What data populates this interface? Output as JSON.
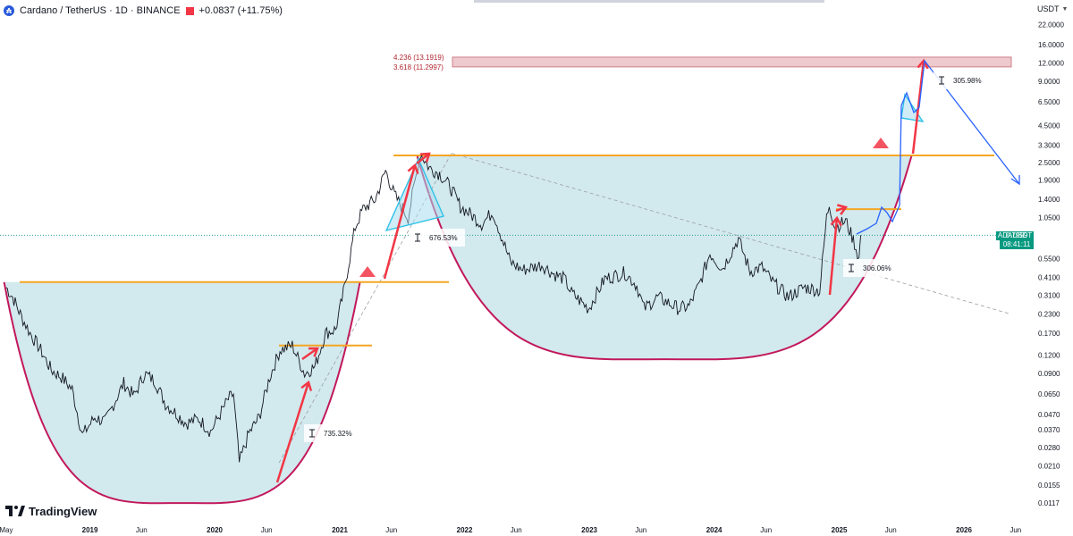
{
  "header": {
    "symbol": "Cardano / TetherUS · 1D · BINANCE",
    "change": "+0.0837 (+11.75%)",
    "logo_letter": "₳"
  },
  "currency_selector": {
    "label": "USDT"
  },
  "brand": {
    "name": "TradingView"
  },
  "current_price": {
    "symbol": "ADAUSDT",
    "price": "0.7959",
    "countdown": "08:41:11",
    "color": "#089981"
  },
  "colors": {
    "cup_fill": "#cde7ec",
    "cup_stroke": "#c2185b",
    "resistance": "#f5a623",
    "arrow_red": "#f23645",
    "projection_blue": "#2962ff",
    "triangle_fill": "#a9dcef",
    "triangle_stroke": "#2ec2e6",
    "target_zone": "#e8b7bc"
  },
  "chart_data": {
    "type": "line",
    "title": "Cardano / TetherUS · 1D · BINANCE",
    "log_scale": true,
    "y_ticks": [
      "22.0000",
      "16.0000",
      "12.0000",
      "9.0000",
      "6.5000",
      "4.5000",
      "3.3000",
      "2.5000",
      "1.9000",
      "1.4000",
      "1.0500",
      "0.7959",
      "0.5500",
      "0.4100",
      "0.3100",
      "0.2300",
      "0.1700",
      "0.1200",
      "0.0900",
      "0.0650",
      "0.0470",
      "0.0370",
      "0.0280",
      "0.0210",
      "0.0155",
      "0.0117"
    ],
    "x_ticks": [
      "May",
      "2019",
      "Jun",
      "2020",
      "Jun",
      "2021",
      "Jun",
      "2022",
      "Jun",
      "2023",
      "Jun",
      "2024",
      "Jun",
      "2025",
      "Jun",
      "2026",
      "Jun"
    ],
    "series": [
      {
        "values": [
          [
            "2018-05-01",
            0.35
          ],
          [
            "2018-05-20",
            0.3
          ],
          [
            "2018-06-15",
            0.22
          ],
          [
            "2018-07-10",
            0.17
          ],
          [
            "2018-08-10",
            0.13
          ],
          [
            "2018-09-10",
            0.095
          ],
          [
            "2018-10-10",
            0.085
          ],
          [
            "2018-11-10",
            0.07
          ],
          [
            "2018-12-10",
            0.034
          ],
          [
            "2019-01-15",
            0.045
          ],
          [
            "2019-02-15",
            0.042
          ],
          [
            "2019-03-15",
            0.058
          ],
          [
            "2019-04-10",
            0.077
          ],
          [
            "2019-05-10",
            0.063
          ],
          [
            "2019-06-10",
            0.09
          ],
          [
            "2019-07-10",
            0.08
          ],
          [
            "2019-08-10",
            0.056
          ],
          [
            "2019-09-10",
            0.048
          ],
          [
            "2019-10-10",
            0.041
          ],
          [
            "2019-11-15",
            0.044
          ],
          [
            "2019-12-20",
            0.036
          ],
          [
            "2020-02-10",
            0.06
          ],
          [
            "2020-02-25",
            0.065
          ],
          [
            "2020-03-13",
            0.022
          ],
          [
            "2020-04-10",
            0.035
          ],
          [
            "2020-05-10",
            0.045
          ],
          [
            "2020-06-10",
            0.085
          ],
          [
            "2020-07-10",
            0.13
          ],
          [
            "2020-08-15",
            0.14
          ],
          [
            "2020-09-20",
            0.09
          ],
          [
            "2020-10-20",
            0.1
          ],
          [
            "2020-11-20",
            0.17
          ],
          [
            "2020-12-20",
            0.18
          ],
          [
            "2021-01-15",
            0.35
          ],
          [
            "2021-02-15",
            0.9
          ],
          [
            "2021-03-10",
            1.2
          ],
          [
            "2021-04-15",
            1.4
          ],
          [
            "2021-05-15",
            2.2
          ],
          [
            "2021-06-10",
            1.5
          ],
          [
            "2021-07-20",
            1.05
          ],
          [
            "2021-08-25",
            2.9
          ],
          [
            "2021-09-20",
            2.3
          ],
          [
            "2021-10-20",
            2.1
          ],
          [
            "2021-11-20",
            1.7
          ],
          [
            "2021-12-20",
            1.25
          ],
          [
            "2022-01-20",
            1.1
          ],
          [
            "2022-02-20",
            0.95
          ],
          [
            "2022-03-25",
            1.15
          ],
          [
            "2022-05-15",
            0.52
          ],
          [
            "2022-06-20",
            0.46
          ],
          [
            "2022-08-15",
            0.5
          ],
          [
            "2022-09-20",
            0.43
          ],
          [
            "2022-10-20",
            0.4
          ],
          [
            "2022-11-10",
            0.32
          ],
          [
            "2022-12-30",
            0.25
          ],
          [
            "2023-02-15",
            0.4
          ],
          [
            "2023-04-15",
            0.44
          ],
          [
            "2023-05-20",
            0.36
          ],
          [
            "2023-06-10",
            0.25
          ],
          [
            "2023-07-20",
            0.3
          ],
          [
            "2023-09-20",
            0.25
          ],
          [
            "2023-10-20",
            0.26
          ],
          [
            "2023-11-20",
            0.37
          ],
          [
            "2023-12-20",
            0.6
          ],
          [
            "2024-01-25",
            0.47
          ],
          [
            "2024-03-12",
            0.75
          ],
          [
            "2024-04-15",
            0.45
          ],
          [
            "2024-05-20",
            0.48
          ],
          [
            "2024-06-20",
            0.38
          ],
          [
            "2024-08-05",
            0.3
          ],
          [
            "2024-09-20",
            0.35
          ],
          [
            "2024-10-20",
            0.34
          ],
          [
            "2024-11-05",
            0.33
          ],
          [
            "2024-11-25",
            1.05
          ],
          [
            "2024-12-03",
            1.3
          ],
          [
            "2024-12-20",
            0.9
          ],
          [
            "2025-01-20",
            1.0
          ],
          [
            "2025-02-15",
            0.7
          ],
          [
            "2025-02-28",
            0.55
          ],
          [
            "2025-03-05",
            0.7959
          ]
        ]
      }
    ],
    "annotations": {
      "fib_levels": [
        {
          "label": "4.236 (13.1919)",
          "value": 13.1919
        },
        {
          "label": "3.618 (11.2997)",
          "value": 11.2997
        }
      ],
      "measures": [
        "735.32%",
        "676.53%",
        "306.06%",
        "305.98%"
      ],
      "cups": [
        {
          "from": "2018-04-25",
          "to": "2021-03-01",
          "rim": 0.38,
          "bottom": 0.0125
        },
        {
          "from": "2021-08-15",
          "to": "2025-08-01",
          "rim": 2.8,
          "bottom": 0.12
        }
      ],
      "resistance_lines": [
        0.38,
        0.14,
        2.8,
        1.2
      ]
    }
  }
}
